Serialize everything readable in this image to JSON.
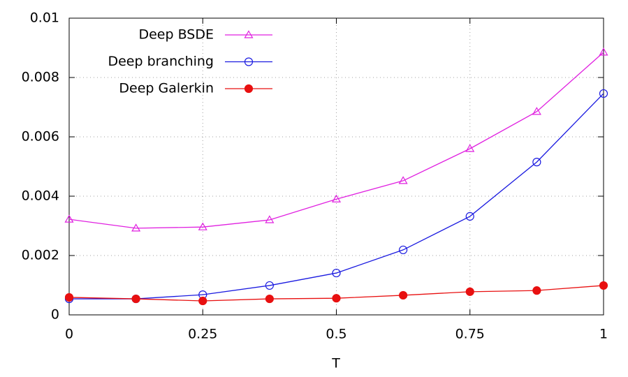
{
  "chart_data": {
    "type": "line",
    "x_label": "T",
    "x": [
      0,
      0.125,
      0.25,
      0.375,
      0.5,
      0.625,
      0.75,
      0.875,
      1
    ],
    "series": [
      {
        "name": "Deep BSDE",
        "color": "#e020e0",
        "marker": "triangle",
        "values": [
          0.00322,
          0.00292,
          0.00296,
          0.0032,
          0.0039,
          0.00452,
          0.0056,
          0.00685,
          0.00885
        ]
      },
      {
        "name": "Deep branching",
        "color": "#1a1ae0",
        "marker": "open-circle",
        "values": [
          0.00054,
          0.00054,
          0.00068,
          0.00099,
          0.00141,
          0.00219,
          0.00332,
          0.00515,
          0.00746
        ]
      },
      {
        "name": "Deep Galerkin",
        "color": "#e81010",
        "marker": "filled-circle",
        "values": [
          0.00059,
          0.00054,
          0.00047,
          0.00054,
          0.00056,
          0.00066,
          0.00078,
          0.00082,
          0.00099
        ]
      }
    ],
    "xlim": [
      0,
      1
    ],
    "xticks": [
      0,
      0.25,
      0.5,
      0.75,
      1
    ],
    "ylim": [
      0,
      0.01
    ],
    "yticks": [
      0,
      0.002,
      0.004,
      0.006,
      0.008,
      0.01
    ],
    "grid": true,
    "legend": "top-left"
  }
}
